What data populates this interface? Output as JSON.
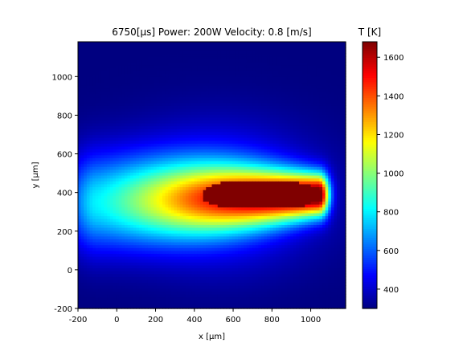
{
  "chart_data": {
    "type": "heatmap",
    "title": "6750[μs] Power: 200W Velocity: 0.8 [m/s]",
    "xlabel": "x [μm]",
    "ylabel": "y [μm]",
    "xlim": [
      -200,
      1180
    ],
    "ylim": [
      -200,
      1180
    ],
    "xticks": [
      "-200",
      "0",
      "200",
      "400",
      "600",
      "800",
      "1000"
    ],
    "yticks": [
      "-200",
      "0",
      "200",
      "400",
      "600",
      "800",
      "1000"
    ],
    "colormap": "jet",
    "colorbar": {
      "label": "T [K]",
      "range": [
        300,
        1680
      ],
      "ticks": [
        "400",
        "600",
        "800",
        "1000",
        "1200",
        "1400",
        "1600"
      ]
    },
    "field": {
      "background_T": 300,
      "peak_T": 1680,
      "melt_pool": {
        "x_range": [
          440,
          1040
        ],
        "center_y": 390,
        "half_width": 70,
        "T": 1680
      },
      "heated_zone_tail_x": -100,
      "edge_T_bottom": 560
    }
  }
}
